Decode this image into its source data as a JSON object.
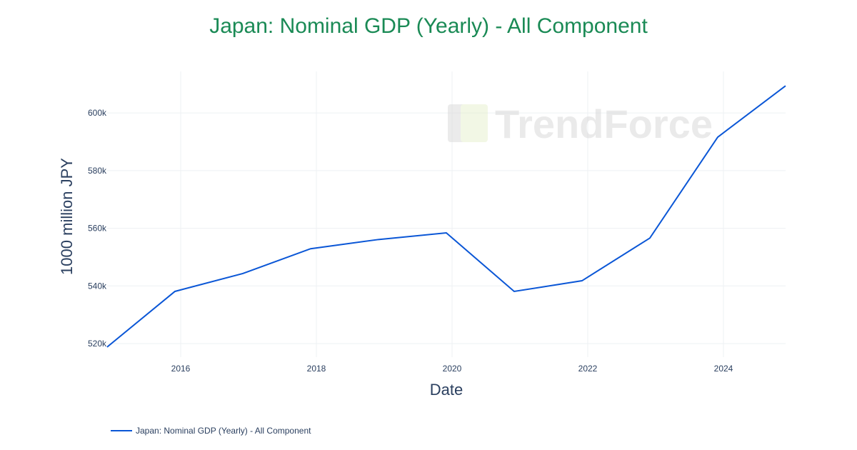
{
  "watermark": "TrendForce",
  "chart_data": {
    "type": "line",
    "title": "Japan: Nominal GDP (Yearly) - All Component",
    "xlabel": "Date",
    "ylabel": "1000 million JPY",
    "x": [
      "2014-12-01",
      "2015-12-01",
      "2016-12-01",
      "2017-12-01",
      "2018-12-01",
      "2019-12-01",
      "2020-12-01",
      "2021-12-01",
      "2022-12-01",
      "2023-12-01",
      "2024-12-01"
    ],
    "series": [
      {
        "name": "Japan: Nominal GDP (Yearly) - All Component",
        "color": "#0a56d6",
        "values": [
          518800,
          538100,
          544300,
          552900,
          556100,
          558400,
          538100,
          541800,
          556600,
          591600,
          609400
        ]
      }
    ],
    "xticks": [
      "2016",
      "2018",
      "2020",
      "2022",
      "2024"
    ],
    "yticks": [
      {
        "v": 520000,
        "label": "520k"
      },
      {
        "v": 540000,
        "label": "540k"
      },
      {
        "v": 560000,
        "label": "560k"
      },
      {
        "v": 580000,
        "label": "580k"
      },
      {
        "v": 600000,
        "label": "600k"
      }
    ],
    "ylim": [
      515300,
      614400
    ],
    "grid": true,
    "legend": "bottom-left"
  }
}
